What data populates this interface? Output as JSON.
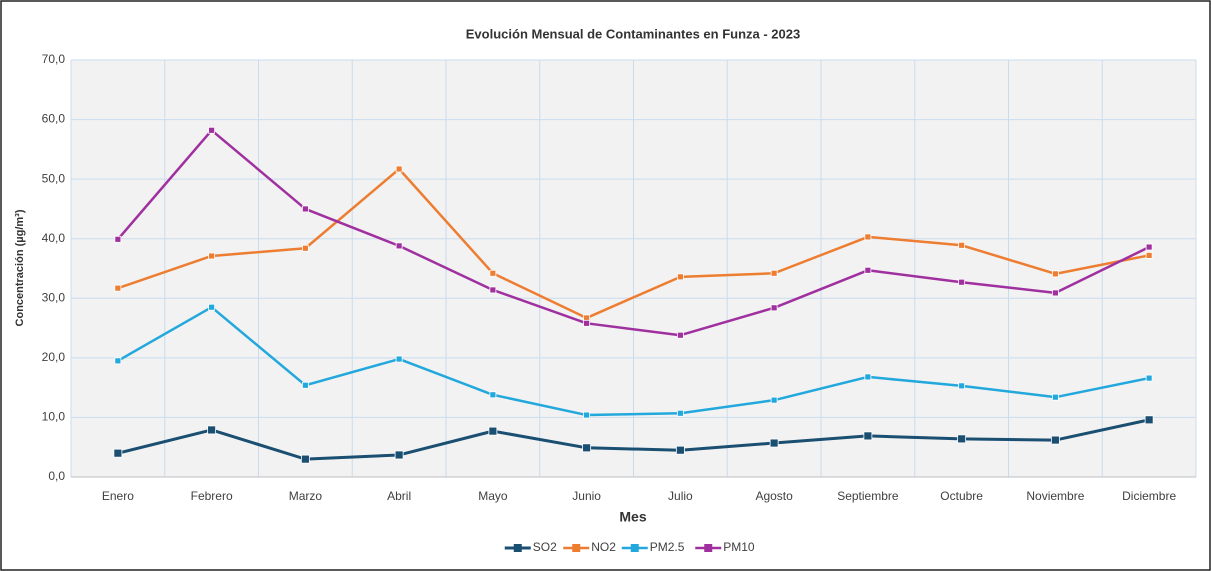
{
  "chart_data": {
    "type": "line",
    "title": "Evolución Mensual de Contaminantes en Funza - 2023",
    "x_label": "Mes",
    "y_label": "Concentración (µg/m³)",
    "categories": [
      "Enero",
      "Febrero",
      "Marzo",
      "Abril",
      "Mayo",
      "Junio",
      "Julio",
      "Agosto",
      "Septiembre",
      "Octubre",
      "Noviembre",
      "Diciembre"
    ],
    "series": [
      {
        "name": "SO2",
        "color": "#1b4f72",
        "values": [
          4.0,
          7.9,
          3.0,
          3.7,
          7.7,
          4.9,
          4.5,
          5.7,
          6.9,
          6.4,
          6.2,
          9.6
        ]
      },
      {
        "name": "NO2",
        "color": "#ed7d31",
        "values": [
          31.7,
          37.1,
          38.4,
          51.7,
          34.2,
          26.7,
          33.6,
          34.2,
          40.3,
          38.9,
          34.1,
          37.2
        ]
      },
      {
        "name": "PM2.5",
        "color": "#22a8dc",
        "values": [
          19.5,
          28.5,
          15.4,
          19.8,
          13.8,
          10.4,
          10.7,
          12.9,
          16.8,
          15.3,
          13.4,
          16.6
        ]
      },
      {
        "name": "PM10",
        "color": "#a0309f",
        "values": [
          39.9,
          58.2,
          45.0,
          38.8,
          31.4,
          25.8,
          23.8,
          28.4,
          34.7,
          32.7,
          30.9,
          38.6
        ]
      }
    ],
    "ylim": [
      0,
      70
    ],
    "yticks": [
      {
        "value": 0,
        "label": "0,0"
      },
      {
        "value": 10,
        "label": "10,0"
      },
      {
        "value": 20,
        "label": "20,0"
      },
      {
        "value": 30,
        "label": "30,0"
      },
      {
        "value": 40,
        "label": "40,0"
      },
      {
        "value": 50,
        "label": "50,0"
      },
      {
        "value": 60,
        "label": "60,0"
      },
      {
        "value": 70,
        "label": "70,0"
      }
    ],
    "grid": true,
    "legend": "bottom"
  }
}
